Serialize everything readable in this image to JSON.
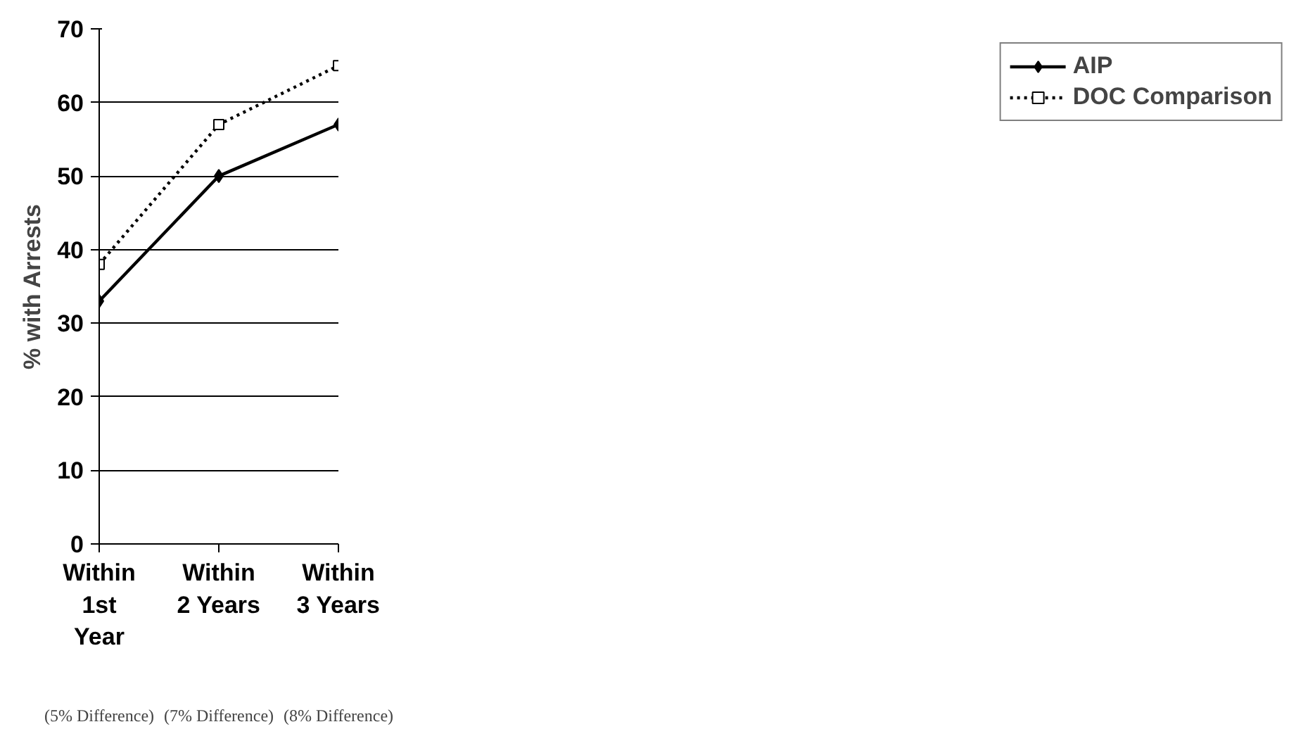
{
  "chart_data": {
    "type": "line",
    "ylabel": "% with Arrests",
    "categories": [
      "Within\n1st\nYear",
      "Within\n2 Years",
      "Within\n3 Years"
    ],
    "series": [
      {
        "name": "AIP",
        "color": "#000000",
        "values": [
          33,
          50,
          57
        ],
        "marker": "diamond",
        "line_style": "solid"
      },
      {
        "name": "DOC Comparison",
        "color": "#000000",
        "values": [
          38,
          57,
          65
        ],
        "marker": "square",
        "line_style": "dotted"
      }
    ],
    "ylim": [
      0,
      70
    ],
    "yticks": [
      0,
      10,
      20,
      30,
      40,
      50,
      60,
      70
    ],
    "grid": "y",
    "legend": "right",
    "annotations": [
      "(5% Difference)",
      "(7% Difference)",
      "(8% Difference)"
    ]
  }
}
